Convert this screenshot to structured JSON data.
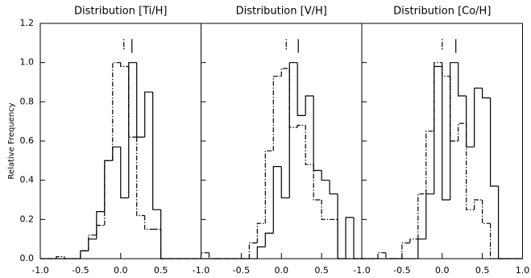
{
  "chart_data": [
    {
      "type": "histogram",
      "title": "Distribution [Ti/H]",
      "ylabel": "Relative Frequency",
      "bins": [
        -1.0,
        -0.9,
        -0.8,
        -0.7,
        -0.6,
        -0.5,
        -0.4,
        -0.3,
        -0.2,
        -0.1,
        0.0,
        0.1,
        0.2,
        0.3,
        0.4,
        0.5,
        0.6,
        0.7,
        0.8,
        0.9,
        1.0
      ],
      "series": [
        {
          "line": "solid",
          "color": "#000000",
          "marker": 0.14,
          "values": [
            0,
            0,
            0,
            0,
            0,
            0.04,
            0.1,
            0.24,
            0.5,
            0.57,
            0.31,
            1.0,
            0.62,
            0.85,
            0.25,
            0,
            0,
            0,
            0,
            0
          ]
        },
        {
          "line": "dashdot",
          "color": "#000000",
          "marker": 0.04,
          "values": [
            0,
            0,
            0.01,
            0,
            0,
            0.04,
            0.12,
            0.17,
            0.5,
            1.0,
            0.98,
            0.62,
            0.22,
            0.15,
            0.15,
            0,
            0,
            0,
            0,
            0
          ]
        }
      ],
      "xlim": [
        -1.0,
        1.0
      ],
      "ylim": [
        0,
        1.2
      ],
      "xticks": [
        {
          "value": -1.0,
          "label": "-1.0"
        },
        -0.5,
        {
          "value": 0.0,
          "label": "0.0"
        },
        0.5
      ],
      "yticks": [
        {
          "value": 0.0,
          "label": "0.0"
        },
        0.2,
        0.4,
        0.6,
        0.8,
        {
          "value": 1.0,
          "label": "1.0"
        },
        1.2
      ]
    },
    {
      "type": "histogram",
      "title": "Distribution [V/H]",
      "bins": [
        -1.0,
        -0.9,
        -0.8,
        -0.7,
        -0.6,
        -0.5,
        -0.4,
        -0.3,
        -0.2,
        -0.1,
        0.0,
        0.1,
        0.2,
        0.3,
        0.4,
        0.5,
        0.6,
        0.7,
        0.8,
        0.9,
        1.0
      ],
      "series": [
        {
          "line": "solid",
          "color": "#000000",
          "marker": 0.21,
          "values": [
            0,
            0,
            0,
            0,
            0,
            0,
            0,
            0.06,
            0.13,
            0.47,
            0.31,
            1.0,
            0.73,
            0.83,
            0.45,
            0.4,
            0.33,
            0,
            0.21,
            0
          ]
        },
        {
          "line": "dashdot",
          "color": "#000000",
          "marker": 0.06,
          "values": [
            0.03,
            0,
            0,
            0,
            0,
            0,
            0.08,
            0.18,
            0.55,
            0.93,
            0.97,
            0.67,
            0.68,
            0.48,
            0.3,
            0.2,
            0.2,
            0,
            0,
            0
          ]
        }
      ],
      "xlim": [
        -1.0,
        1.0
      ],
      "ylim": [
        0,
        1.2
      ],
      "xticks": [
        {
          "value": -1.0,
          "label": "-1.0"
        },
        -0.5,
        {
          "value": 0.0,
          "label": "0.0"
        },
        0.5
      ],
      "yticks": [
        0.0,
        0.2,
        0.4,
        0.6,
        0.8,
        1.0,
        1.2
      ]
    },
    {
      "type": "histogram",
      "title": "Distribution [Co/H]",
      "bins": [
        -1.0,
        -0.9,
        -0.8,
        -0.7,
        -0.6,
        -0.5,
        -0.4,
        -0.3,
        -0.2,
        -0.1,
        0.0,
        0.1,
        0.2,
        0.3,
        0.4,
        0.5,
        0.6,
        0.7,
        0.8,
        0.9,
        1.0
      ],
      "series": [
        {
          "line": "solid",
          "color": "#000000",
          "marker": 0.17,
          "values": [
            0,
            0,
            0,
            0,
            0,
            0,
            0,
            0.1,
            0.33,
            0.98,
            0.3,
            1.0,
            0.83,
            0.57,
            0.87,
            0.82,
            0.37,
            0,
            0,
            0
          ]
        },
        {
          "line": "dashdot",
          "color": "#000000",
          "marker": 0.0,
          "values": [
            0,
            0,
            0.03,
            0,
            0,
            0.08,
            0.1,
            0.33,
            0.65,
            1.0,
            0.93,
            0.6,
            0.69,
            0.25,
            0.3,
            0.18,
            0,
            0,
            0,
            0
          ]
        }
      ],
      "xlim": [
        -1.0,
        1.0
      ],
      "ylim": [
        0,
        1.2
      ],
      "xticks": [
        {
          "value": -1.0,
          "label": "-1.0"
        },
        -0.5,
        {
          "value": 0.0,
          "label": "0.0"
        },
        0.5,
        {
          "value": 1.0,
          "label": "1.0"
        }
      ],
      "yticks": [
        0.0,
        0.2,
        0.4,
        0.6,
        0.8,
        1.0,
        1.2
      ]
    }
  ]
}
